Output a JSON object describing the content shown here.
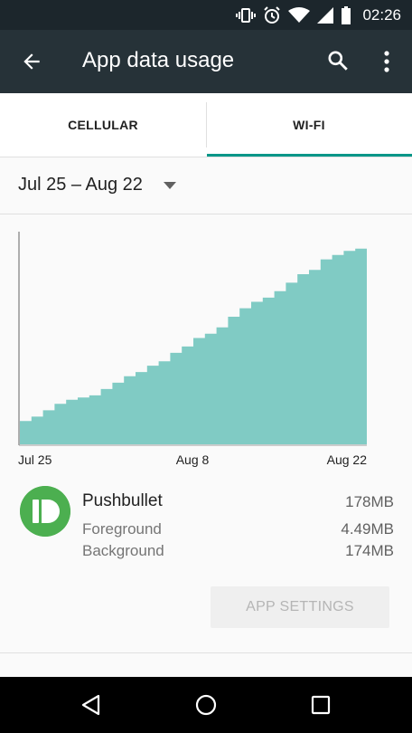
{
  "status_bar": {
    "time": "02:26",
    "icons": [
      "vibrate-icon",
      "alarm-icon",
      "wifi-icon",
      "cell-signal-icon",
      "battery-icon"
    ]
  },
  "app_bar": {
    "title": "App data usage",
    "back_icon": "arrow-back-icon",
    "search_icon": "search-icon",
    "more_icon": "more-vert-icon",
    "color": "#263238"
  },
  "tabs": [
    {
      "label": "CELLULAR",
      "selected": false
    },
    {
      "label": "WI-FI",
      "selected": true
    }
  ],
  "accent_color": "#009688",
  "cycle": {
    "label": "Jul 25 – Aug 22",
    "dropdown_icon": "dropdown-arrow-icon"
  },
  "chart_data": {
    "type": "area",
    "fill_color": "#80cbc4",
    "x_tick_labels": [
      "Jul 25",
      "Aug 8",
      "Aug 22"
    ],
    "ylim": [
      0,
      1
    ],
    "values": [
      0.0,
      0.11,
      0.13,
      0.16,
      0.19,
      0.21,
      0.22,
      0.23,
      0.26,
      0.29,
      0.32,
      0.34,
      0.37,
      0.39,
      0.43,
      0.46,
      0.5,
      0.52,
      0.55,
      0.6,
      0.64,
      0.67,
      0.69,
      0.72,
      0.76,
      0.8,
      0.82,
      0.87,
      0.89,
      0.91,
      0.92
    ]
  },
  "app": {
    "name": "Pushbullet",
    "total": "178MB",
    "icon": "pushbullet-logo-icon",
    "foreground_label": "Foreground",
    "foreground_value": "4.49MB",
    "background_label": "Background",
    "background_value": "174MB"
  },
  "button": {
    "label": "APP SETTINGS",
    "enabled": false
  },
  "nav_bar": {
    "back_icon": "nav-back-icon",
    "home_icon": "nav-home-icon",
    "recents_icon": "nav-recents-icon"
  }
}
